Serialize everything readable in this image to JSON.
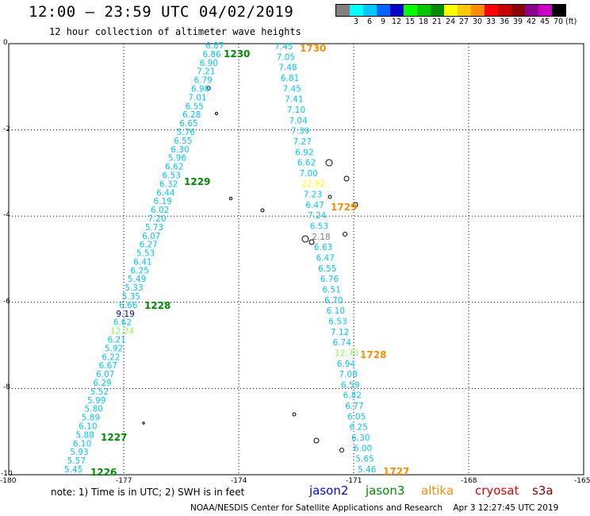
{
  "header": {
    "title": "12:00 – 23:59 UTC 04/02/2019",
    "subtitle": "12 hour collection of altimeter wave heights"
  },
  "legend": {
    "unit": "(ft)",
    "items": [
      {
        "label": "",
        "color": "#808080"
      },
      {
        "label": "3",
        "color": "#00ffff"
      },
      {
        "label": "6",
        "color": "#00c8ff"
      },
      {
        "label": "9",
        "color": "#0064ff"
      },
      {
        "label": "12",
        "color": "#0000c8"
      },
      {
        "label": "15",
        "color": "#00ff00"
      },
      {
        "label": "18",
        "color": "#00c800"
      },
      {
        "label": "21",
        "color": "#008c00"
      },
      {
        "label": "24",
        "color": "#ffff00"
      },
      {
        "label": "27",
        "color": "#ffc800"
      },
      {
        "label": "30",
        "color": "#ff8c00"
      },
      {
        "label": "33",
        "color": "#ff0000"
      },
      {
        "label": "36",
        "color": "#c80000"
      },
      {
        "label": "39",
        "color": "#8c0000"
      },
      {
        "label": "42",
        "color": "#8c008c"
      },
      {
        "label": "45",
        "color": "#c800c8"
      },
      {
        "label": "70",
        "color": "#000000"
      }
    ]
  },
  "map": {
    "lat_ticks": [
      "0",
      "-2",
      "-4",
      "-6",
      "-8",
      "-10"
    ],
    "lon_ticks": [
      "-180",
      "-177",
      "-174",
      "-171",
      "-168",
      "-165"
    ]
  },
  "tracks": [
    {
      "id": "west",
      "observations": [
        {
          "v": "6.87",
          "c": "#00c8ff"
        },
        {
          "v": "6.86",
          "c": "#00c8ff"
        },
        {
          "v": "6.90",
          "c": "#00c8ff"
        },
        {
          "v": "7.21",
          "c": "#00c8ff"
        },
        {
          "v": "6.79",
          "c": "#00c8ff"
        },
        {
          "v": "6.98",
          "c": "#00c8ff"
        },
        {
          "v": "7.01",
          "c": "#00c8ff"
        },
        {
          "v": "6.55",
          "c": "#00c8ff"
        },
        {
          "v": "6.28",
          "c": "#00c8ff"
        },
        {
          "v": "6.65",
          "c": "#00c8ff"
        },
        {
          "v": "5.76",
          "c": "#00c8ff"
        },
        {
          "v": "6.55",
          "c": "#00c8ff"
        },
        {
          "v": "6.30",
          "c": "#00c8ff"
        },
        {
          "v": "5.96",
          "c": "#00c8ff"
        },
        {
          "v": "6.62",
          "c": "#00c8ff"
        },
        {
          "v": "6.53",
          "c": "#00c8ff"
        },
        {
          "v": "6.32",
          "c": "#00c8ff"
        },
        {
          "v": "6.44",
          "c": "#00c8ff"
        },
        {
          "v": "6.19",
          "c": "#00c8ff"
        },
        {
          "v": "6.02",
          "c": "#00c8ff"
        },
        {
          "v": "7.20",
          "c": "#00c8ff"
        },
        {
          "v": "5.73",
          "c": "#00c8ff"
        },
        {
          "v": "6.07",
          "c": "#00c8ff"
        },
        {
          "v": "6.27",
          "c": "#00c8ff"
        },
        {
          "v": "5.53",
          "c": "#00c8ff"
        },
        {
          "v": "6.41",
          "c": "#00c8ff"
        },
        {
          "v": "6.25",
          "c": "#00c8ff"
        },
        {
          "v": "5.49",
          "c": "#00c8ff"
        },
        {
          "v": "5.33",
          "c": "#00c8ff"
        },
        {
          "v": "5.35",
          "c": "#00c8ff"
        },
        {
          "v": "6.66",
          "c": "#00c8ff"
        },
        {
          "v": "9.19",
          "c": "#0000c8"
        },
        {
          "v": "6.62",
          "c": "#00c8ff"
        },
        {
          "v": "12.24",
          "c": "#80ff40"
        },
        {
          "v": "6.21",
          "c": "#00c8ff"
        },
        {
          "v": "5.92",
          "c": "#00c8ff"
        },
        {
          "v": "6.22",
          "c": "#00c8ff"
        },
        {
          "v": "6.67",
          "c": "#00c8ff"
        },
        {
          "v": "6.07",
          "c": "#00c8ff"
        },
        {
          "v": "6.29",
          "c": "#00c8ff"
        },
        {
          "v": "5.52",
          "c": "#00c8ff"
        },
        {
          "v": "5.99",
          "c": "#00c8ff"
        },
        {
          "v": "5.80",
          "c": "#00c8ff"
        },
        {
          "v": "5.89",
          "c": "#00c8ff"
        },
        {
          "v": "6.10",
          "c": "#00c8ff"
        },
        {
          "v": "5.88",
          "c": "#00c8ff"
        },
        {
          "v": "6.10",
          "c": "#00c8ff"
        },
        {
          "v": "5.93",
          "c": "#00c8ff"
        },
        {
          "v": "5.57",
          "c": "#00c8ff"
        },
        {
          "v": "5.45",
          "c": "#00c8ff"
        }
      ],
      "times": [
        {
          "t": "1230",
          "color": "#008c00"
        },
        {
          "t": "1229",
          "color": "#008c00"
        },
        {
          "t": "1228",
          "color": "#008c00"
        },
        {
          "t": "1227",
          "color": "#008c00"
        },
        {
          "t": "1226",
          "color": "#008c00"
        }
      ]
    },
    {
      "id": "east",
      "observations": [
        {
          "v": "7.45",
          "c": "#00c8ff"
        },
        {
          "v": "7.05",
          "c": "#00c8ff"
        },
        {
          "v": "7.48",
          "c": "#00c8ff"
        },
        {
          "v": "6.81",
          "c": "#00c8ff"
        },
        {
          "v": "7.45",
          "c": "#00c8ff"
        },
        {
          "v": "7.41",
          "c": "#00c8ff"
        },
        {
          "v": "7.10",
          "c": "#00c8ff"
        },
        {
          "v": "7.04",
          "c": "#00c8ff"
        },
        {
          "v": "7.39",
          "c": "#00c8ff"
        },
        {
          "v": "7.27",
          "c": "#00c8ff"
        },
        {
          "v": "6.92",
          "c": "#00c8ff"
        },
        {
          "v": "6.62",
          "c": "#00c8ff"
        },
        {
          "v": "7.00",
          "c": "#00c8ff"
        },
        {
          "v": "22.92",
          "c": "#ffff00"
        },
        {
          "v": "7.23",
          "c": "#00c8ff"
        },
        {
          "v": "6.47",
          "c": "#00c8ff"
        },
        {
          "v": "7.24",
          "c": "#00c8ff"
        },
        {
          "v": "6.53",
          "c": "#00c8ff"
        },
        {
          "v": "2.18",
          "c": "#808080"
        },
        {
          "v": "6.63",
          "c": "#00c8ff"
        },
        {
          "v": "6.47",
          "c": "#00c8ff"
        },
        {
          "v": "6.55",
          "c": "#00c8ff"
        },
        {
          "v": "6.76",
          "c": "#00c8ff"
        },
        {
          "v": "6.51",
          "c": "#00c8ff"
        },
        {
          "v": "6.70",
          "c": "#00c8ff"
        },
        {
          "v": "6.10",
          "c": "#00c8ff"
        },
        {
          "v": "6.53",
          "c": "#00c8ff"
        },
        {
          "v": "7.12",
          "c": "#00c8ff"
        },
        {
          "v": "6.74",
          "c": "#00c8ff"
        },
        {
          "v": "12.70",
          "c": "#80ff40"
        },
        {
          "v": "6.94",
          "c": "#00c8ff"
        },
        {
          "v": "7.08",
          "c": "#00c8ff"
        },
        {
          "v": "6.59",
          "c": "#00c8ff"
        },
        {
          "v": "6.82",
          "c": "#00c8ff"
        },
        {
          "v": "6.77",
          "c": "#00c8ff"
        },
        {
          "v": "6.05",
          "c": "#00c8ff"
        },
        {
          "v": "6.25",
          "c": "#00c8ff"
        },
        {
          "v": "6.30",
          "c": "#00c8ff"
        },
        {
          "v": "6.00",
          "c": "#00c8ff"
        },
        {
          "v": "5.65",
          "c": "#00c8ff"
        },
        {
          "v": "5.46",
          "c": "#00c8ff"
        }
      ],
      "times": [
        {
          "t": "1730",
          "color": "#ff8c00"
        },
        {
          "t": "1729",
          "color": "#ff8c00"
        },
        {
          "t": "1728",
          "color": "#ff8c00"
        },
        {
          "t": "1727",
          "color": "#ff8c00"
        }
      ]
    }
  ],
  "notes": {
    "text": "note:  1) Time is in UTC;  2) SWH is in feet",
    "satellites": [
      {
        "name": "jason2",
        "color": "#0000ff"
      },
      {
        "name": "jason3",
        "color": "#008c00"
      },
      {
        "name": "altika",
        "color": "#ff8c00"
      },
      {
        "name": "cryosat",
        "color": "#e00000"
      },
      {
        "name": "s3a",
        "color": "#8c0000"
      }
    ]
  },
  "footer": {
    "credit": "NOAA/NESDIS Center for Satellite Applications and Research",
    "timestamp": "Apr  3 12:27:45 UTC 2019"
  }
}
